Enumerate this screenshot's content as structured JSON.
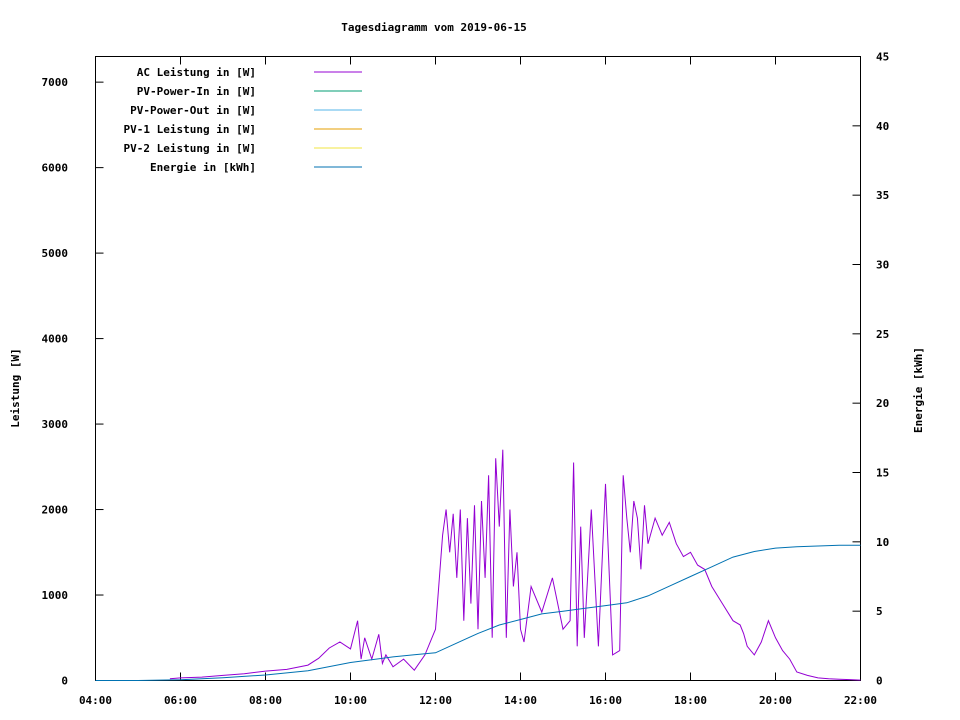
{
  "chart_data": {
    "type": "line",
    "title": "Tagesdiagramm vom 2019-06-15",
    "xlabel": "",
    "ylabel": "Leistung [W]",
    "y2label": "Energie [kWh]",
    "xlim": [
      "04:00",
      "22:00"
    ],
    "ylim": [
      0,
      7300
    ],
    "y2lim": [
      0,
      45
    ],
    "x_ticks": [
      "04:00",
      "06:00",
      "08:00",
      "10:00",
      "12:00",
      "14:00",
      "16:00",
      "18:00",
      "20:00",
      "22:00"
    ],
    "y_ticks": [
      0,
      1000,
      2000,
      3000,
      4000,
      5000,
      6000,
      7000
    ],
    "y2_ticks": [
      0,
      5,
      10,
      15,
      20,
      25,
      30,
      35,
      40,
      45
    ],
    "grid": false,
    "legend_position": "top-left",
    "legend": [
      {
        "name": "AC Leistung in [W]",
        "color": "#9400d3"
      },
      {
        "name": "PV-Power-In in [W]",
        "color": "#009e73"
      },
      {
        "name": "PV-Power-Out in [W]",
        "color": "#56b4e9"
      },
      {
        "name": "PV-1 Leistung in [W]",
        "color": "#e69f00"
      },
      {
        "name": "PV-2 Leistung in [W]",
        "color": "#f0e442"
      },
      {
        "name": "Energie in [kWh]",
        "color": "#0072b2"
      }
    ],
    "series": [
      {
        "name": "AC Leistung in [W]",
        "axis": "y",
        "color": "#9400d3",
        "x": [
          "05:45",
          "06:00",
          "06:30",
          "07:00",
          "07:30",
          "08:00",
          "08:30",
          "09:00",
          "09:15",
          "09:30",
          "09:45",
          "10:00",
          "10:10",
          "10:15",
          "10:20",
          "10:30",
          "10:40",
          "10:45",
          "10:50",
          "11:00",
          "11:15",
          "11:30",
          "11:45",
          "12:00",
          "12:10",
          "12:15",
          "12:20",
          "12:25",
          "12:30",
          "12:35",
          "12:40",
          "12:45",
          "12:50",
          "12:55",
          "13:00",
          "13:05",
          "13:10",
          "13:15",
          "13:20",
          "13:25",
          "13:30",
          "13:35",
          "13:40",
          "13:45",
          "13:50",
          "13:55",
          "14:00",
          "14:05",
          "14:15",
          "14:30",
          "14:45",
          "15:00",
          "15:10",
          "15:15",
          "15:20",
          "15:25",
          "15:30",
          "15:40",
          "15:50",
          "16:00",
          "16:10",
          "16:20",
          "16:25",
          "16:30",
          "16:35",
          "16:40",
          "16:45",
          "16:50",
          "16:55",
          "17:00",
          "17:10",
          "17:20",
          "17:30",
          "17:40",
          "17:50",
          "18:00",
          "18:10",
          "18:20",
          "18:30",
          "18:45",
          "19:00",
          "19:10",
          "19:15",
          "19:20",
          "19:30",
          "19:40",
          "19:50",
          "20:00",
          "20:10",
          "20:20",
          "20:30",
          "20:45",
          "21:00",
          "21:15",
          "21:30",
          "21:45",
          "22:00"
        ],
        "values": [
          20,
          30,
          40,
          60,
          80,
          110,
          130,
          180,
          260,
          380,
          450,
          370,
          700,
          250,
          500,
          250,
          540,
          200,
          300,
          160,
          250,
          120,
          300,
          600,
          1700,
          2000,
          1500,
          1950,
          1200,
          2000,
          700,
          1900,
          900,
          2050,
          600,
          2100,
          1200,
          2400,
          500,
          2600,
          1800,
          2700,
          500,
          2000,
          1100,
          1500,
          600,
          450,
          1100,
          800,
          1200,
          600,
          700,
          2550,
          400,
          1800,
          500,
          2000,
          400,
          2300,
          300,
          350,
          2400,
          1900,
          1500,
          2100,
          1900,
          1300,
          2050,
          1600,
          1900,
          1700,
          1850,
          1600,
          1450,
          1500,
          1350,
          1300,
          1100,
          900,
          700,
          650,
          550,
          400,
          300,
          450,
          700,
          500,
          350,
          250,
          100,
          60,
          30,
          20,
          15,
          10,
          5
        ]
      },
      {
        "name": "Energie in [kWh]",
        "axis": "y2",
        "color": "#0072b2",
        "x": [
          "04:00",
          "05:00",
          "06:00",
          "07:00",
          "08:00",
          "09:00",
          "10:00",
          "11:00",
          "11:30",
          "12:00",
          "12:30",
          "13:00",
          "13:30",
          "14:00",
          "14:30",
          "15:00",
          "15:30",
          "16:00",
          "16:30",
          "17:00",
          "17:30",
          "18:00",
          "18:30",
          "19:00",
          "19:30",
          "20:00",
          "20:30",
          "21:00",
          "21:30",
          "22:00"
        ],
        "values": [
          0,
          0,
          0.05,
          0.2,
          0.4,
          0.7,
          1.3,
          1.7,
          1.85,
          2.0,
          2.7,
          3.4,
          4.0,
          4.4,
          4.8,
          5.0,
          5.2,
          5.4,
          5.6,
          6.1,
          6.8,
          7.5,
          8.2,
          8.9,
          9.3,
          9.55,
          9.65,
          9.7,
          9.75,
          9.75
        ]
      }
    ]
  }
}
